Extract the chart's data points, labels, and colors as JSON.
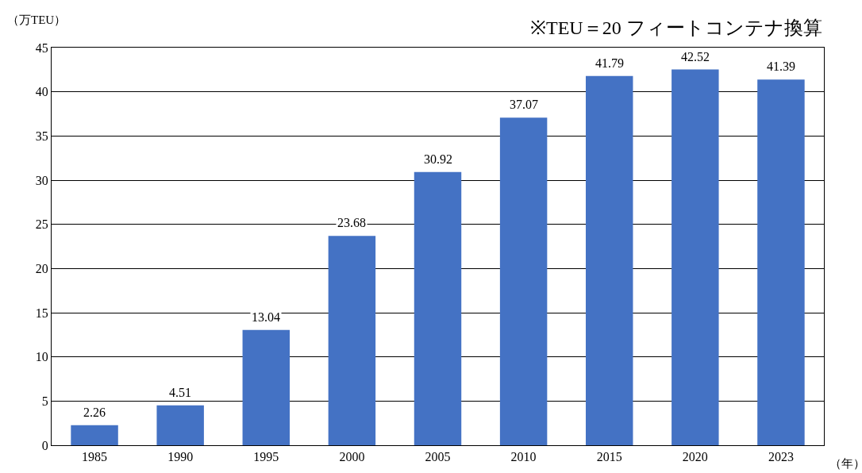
{
  "chart_data": {
    "type": "bar",
    "title": "※TEU＝20 フィートコンテナ換算",
    "ylabel": "（万TEU）",
    "xlabel": "（年）",
    "categories": [
      "1985",
      "1990",
      "1995",
      "2000",
      "2005",
      "2010",
      "2015",
      "2020",
      "2023"
    ],
    "values": [
      2.26,
      4.51,
      13.04,
      23.68,
      30.92,
      37.07,
      41.79,
      42.52,
      41.39
    ],
    "color": "#4472c4",
    "ylim": [
      0,
      45
    ],
    "yticks": [
      0,
      5,
      10,
      15,
      20,
      25,
      30,
      35,
      40,
      45
    ],
    "grid": "y",
    "data_labels": true
  }
}
